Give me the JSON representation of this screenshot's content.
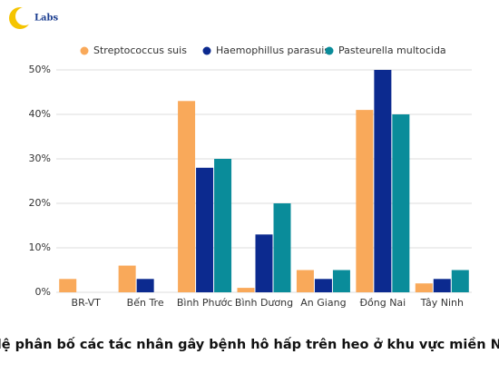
{
  "logo_text": "Labs",
  "chart_data": {
    "type": "bar",
    "title": "Tỷ lệ phân bố các tác nhân gây bệnh hô hấp trên heo ở khu vực miền Nam",
    "categories": [
      "BR-VT",
      "Bến Tre",
      "Bình Phước",
      "Bình Dương",
      "An Giang",
      "Đồng Nai",
      "Tây Ninh"
    ],
    "series": [
      {
        "name": "Streptococcus suis",
        "color": "#f9a95a",
        "values": [
          3,
          6,
          43,
          1,
          5,
          41,
          2
        ]
      },
      {
        "name": "Haemophillus parasuis",
        "color": "#0c2a8f",
        "values": [
          0,
          3,
          28,
          13,
          3,
          50,
          3
        ]
      },
      {
        "name": "Pasteurella multocida",
        "color": "#0a8c9a",
        "values": [
          0,
          0,
          30,
          20,
          5,
          40,
          5
        ]
      }
    ],
    "ylim": [
      0,
      50
    ],
    "yticks": [
      {
        "value": 0,
        "label": "0%"
      },
      {
        "value": 10,
        "label": "10%"
      },
      {
        "value": 20,
        "label": "20%"
      },
      {
        "value": 30,
        "label": "30%"
      },
      {
        "value": 40,
        "label": "40%"
      },
      {
        "value": 50,
        "label": "50%"
      }
    ],
    "grid": true,
    "legend": "top"
  }
}
